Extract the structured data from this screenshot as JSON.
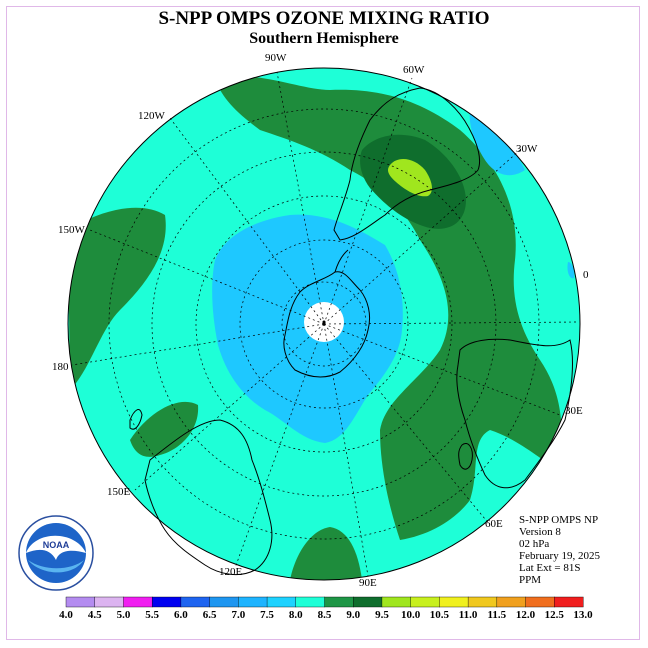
{
  "header": {
    "title": "S-NPP OMPS OZONE MIXING RATIO",
    "subtitle": "Southern Hemisphere"
  },
  "map": {
    "projection": "south-polar-stereographic",
    "lon_labels": {
      "w90": "90W",
      "w60": "60W",
      "w30": "30W",
      "e0": "0",
      "e30": "30E",
      "e60": "60E",
      "e90": "90E",
      "e120": "120E",
      "e150": "150E",
      "e180": "180",
      "w150": "150W",
      "w120": "120W"
    },
    "colors": {
      "c_7_5_8_0": "#1effd7",
      "c_7_0_7_5": "#1ec8ff",
      "c_8_0_8_5": "#1e8c3c",
      "c_8_5_9_0": "#0f6e2d",
      "c_9_0_9_5": "#a0e61e",
      "pole": "#ffffff"
    },
    "logo_text": "NOAA"
  },
  "info": {
    "line1": "S-NPP OMPS NP",
    "line2": "Version 8",
    "line3": "02 hPa",
    "line4": "February 19, 2025",
    "line5": "Lat Ext = 81S",
    "line6": "PPM"
  },
  "colorbar": {
    "ticks": [
      "4.0",
      "4.5",
      "5.0",
      "5.5",
      "6.0",
      "6.5",
      "7.0",
      "7.5",
      "8.0",
      "8.5",
      "9.0",
      "9.5",
      "10.0",
      "10.5",
      "11.0",
      "11.5",
      "12.0",
      "12.5",
      "13.0"
    ],
    "colors": [
      "#b48cf0",
      "#dcb4f0",
      "#f01ef0",
      "#0000f0",
      "#1e64f0",
      "#1e96f0",
      "#1eb4ff",
      "#1ed2ff",
      "#1effd7",
      "#1e9646",
      "#0f6e2d",
      "#a0e61e",
      "#c8f01e",
      "#f0f01e",
      "#f0c81e",
      "#f0a01e",
      "#f06e1e",
      "#f01e1e",
      "#a0643c"
    ]
  }
}
